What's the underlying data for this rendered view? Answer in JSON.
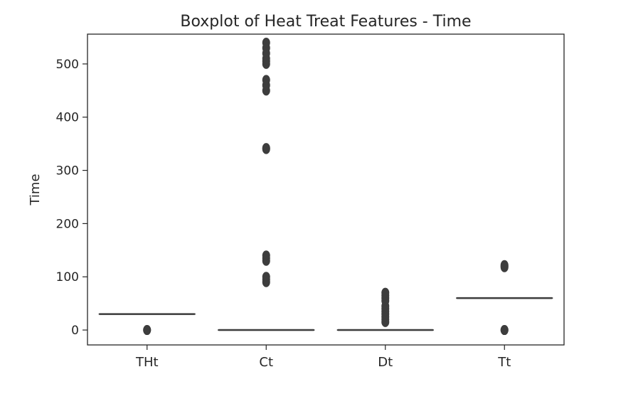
{
  "chart_data": {
    "type": "box",
    "title": "Boxplot of Heat Treat Features - Time",
    "xlabel": "",
    "ylabel": "Time",
    "categories": [
      "THt",
      "Ct",
      "Dt",
      "Tt"
    ],
    "ylim": [
      -28,
      556
    ],
    "yticks": [
      0,
      100,
      200,
      300,
      400,
      500
    ],
    "boxes": [
      {
        "q1": 30,
        "median": 30,
        "q3": 30,
        "whisker_low": 30,
        "whisker_high": 30,
        "outliers": [
          0,
          0
        ]
      },
      {
        "q1": 0,
        "median": 0,
        "q3": 0,
        "whisker_low": 0,
        "whisker_high": 0,
        "outliers": [
          90,
          95,
          100,
          130,
          135,
          140,
          340,
          342,
          450,
          460,
          470,
          500,
          505,
          510,
          520,
          530,
          540
        ]
      },
      {
        "q1": 0,
        "median": 0,
        "q3": 0,
        "whisker_low": 0,
        "whisker_high": 0,
        "outliers": [
          15,
          20,
          25,
          30,
          35,
          40,
          45,
          55,
          60,
          65,
          70
        ]
      },
      {
        "q1": 60,
        "median": 60,
        "q3": 60,
        "whisker_low": 60,
        "whisker_high": 60,
        "outliers": [
          0,
          0,
          118,
          120,
          122
        ]
      }
    ],
    "grid": false,
    "colors": {
      "box_line": "#3d3d3d",
      "outlier": "#3d3d3d",
      "axis": "#262626"
    }
  }
}
